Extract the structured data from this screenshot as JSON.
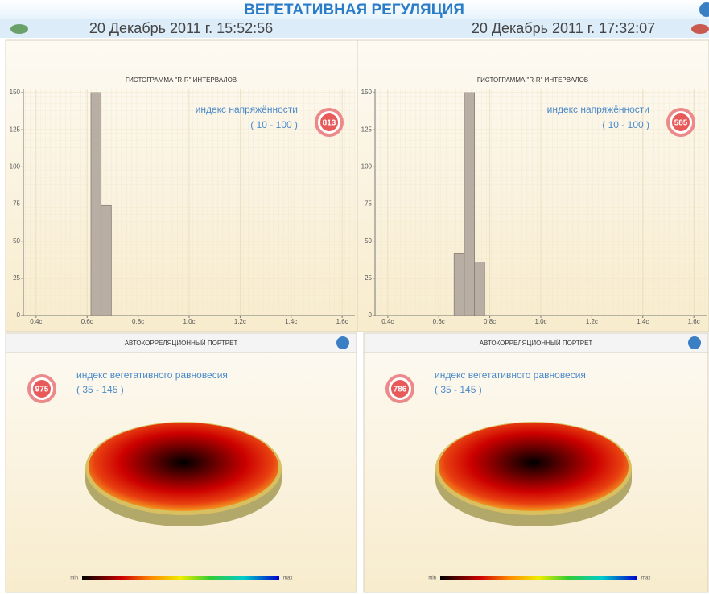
{
  "header": {
    "title": "ВЕГЕТАТИВНАЯ РЕГУЛЯЦИЯ",
    "dates": [
      "20 Декабрь 2011 г. 15:52:56",
      "20 Декабрь 2011 г. 17:32:07"
    ]
  },
  "chart_data": [
    {
      "type": "histogram",
      "title": "ГИСТОГРАММА \"R-R\" ИНТЕРВАЛОВ",
      "bins": [
        0.615,
        0.655,
        0.695
      ],
      "values": [
        150,
        74
      ],
      "color": "#b9aea3",
      "xlim": [
        0.35,
        1.65
      ],
      "ylim": [
        0,
        150
      ],
      "xticks": [
        {
          "value": 0.4,
          "label": "0,4с"
        },
        {
          "value": 0.6,
          "label": "0,6с"
        },
        {
          "value": 0.8,
          "label": "0,8с"
        },
        {
          "value": 1.0,
          "label": "1,0с"
        },
        {
          "value": 1.2,
          "label": "1,2с"
        },
        {
          "value": 1.4,
          "label": "1,4с"
        },
        {
          "value": 1.6,
          "label": "1,6с"
        }
      ],
      "yticks": [
        0,
        25,
        50,
        75,
        100,
        125,
        150
      ],
      "grid": true,
      "index": {
        "label": "индекс напряжённости",
        "range": "( 10 - 100 )",
        "value": 813
      }
    },
    {
      "type": "histogram",
      "title": "ГИСТОГРАММА \"R-R\" ИНТЕРВАЛОВ",
      "bins": [
        0.66,
        0.7,
        0.74,
        0.78
      ],
      "values": [
        42,
        150,
        36
      ],
      "color": "#b9aea3",
      "xlim": [
        0.35,
        1.65
      ],
      "ylim": [
        0,
        150
      ],
      "xticks": [
        {
          "value": 0.4,
          "label": "0,4с"
        },
        {
          "value": 0.6,
          "label": "0,6с"
        },
        {
          "value": 0.8,
          "label": "0,8с"
        },
        {
          "value": 1.0,
          "label": "1,0с"
        },
        {
          "value": 1.2,
          "label": "1,2с"
        },
        {
          "value": 1.4,
          "label": "1,4с"
        },
        {
          "value": 1.6,
          "label": "1,6с"
        }
      ],
      "yticks": [
        0,
        25,
        50,
        75,
        100,
        125,
        150
      ],
      "grid": true,
      "index": {
        "label": "индекс напряжённости",
        "range": "( 10 - 100 )",
        "value": 585
      }
    }
  ],
  "portraits": [
    {
      "title": "АВТОКОРРЕЛЯЦИОННЫЙ ПОРТРЕТ",
      "index": {
        "label": "индекс вегетативного равновесия",
        "range": "( 35 - 145 )",
        "value": 975
      },
      "scale": [
        "min",
        "max"
      ]
    },
    {
      "title": "АВТОКОРРЕЛЯЦИОННЫЙ ПОРТРЕТ",
      "index": {
        "label": "индекс вегетативного равновесия",
        "range": "( 35 - 145 )",
        "value": 786
      },
      "scale": [
        "min",
        "max"
      ]
    }
  ]
}
